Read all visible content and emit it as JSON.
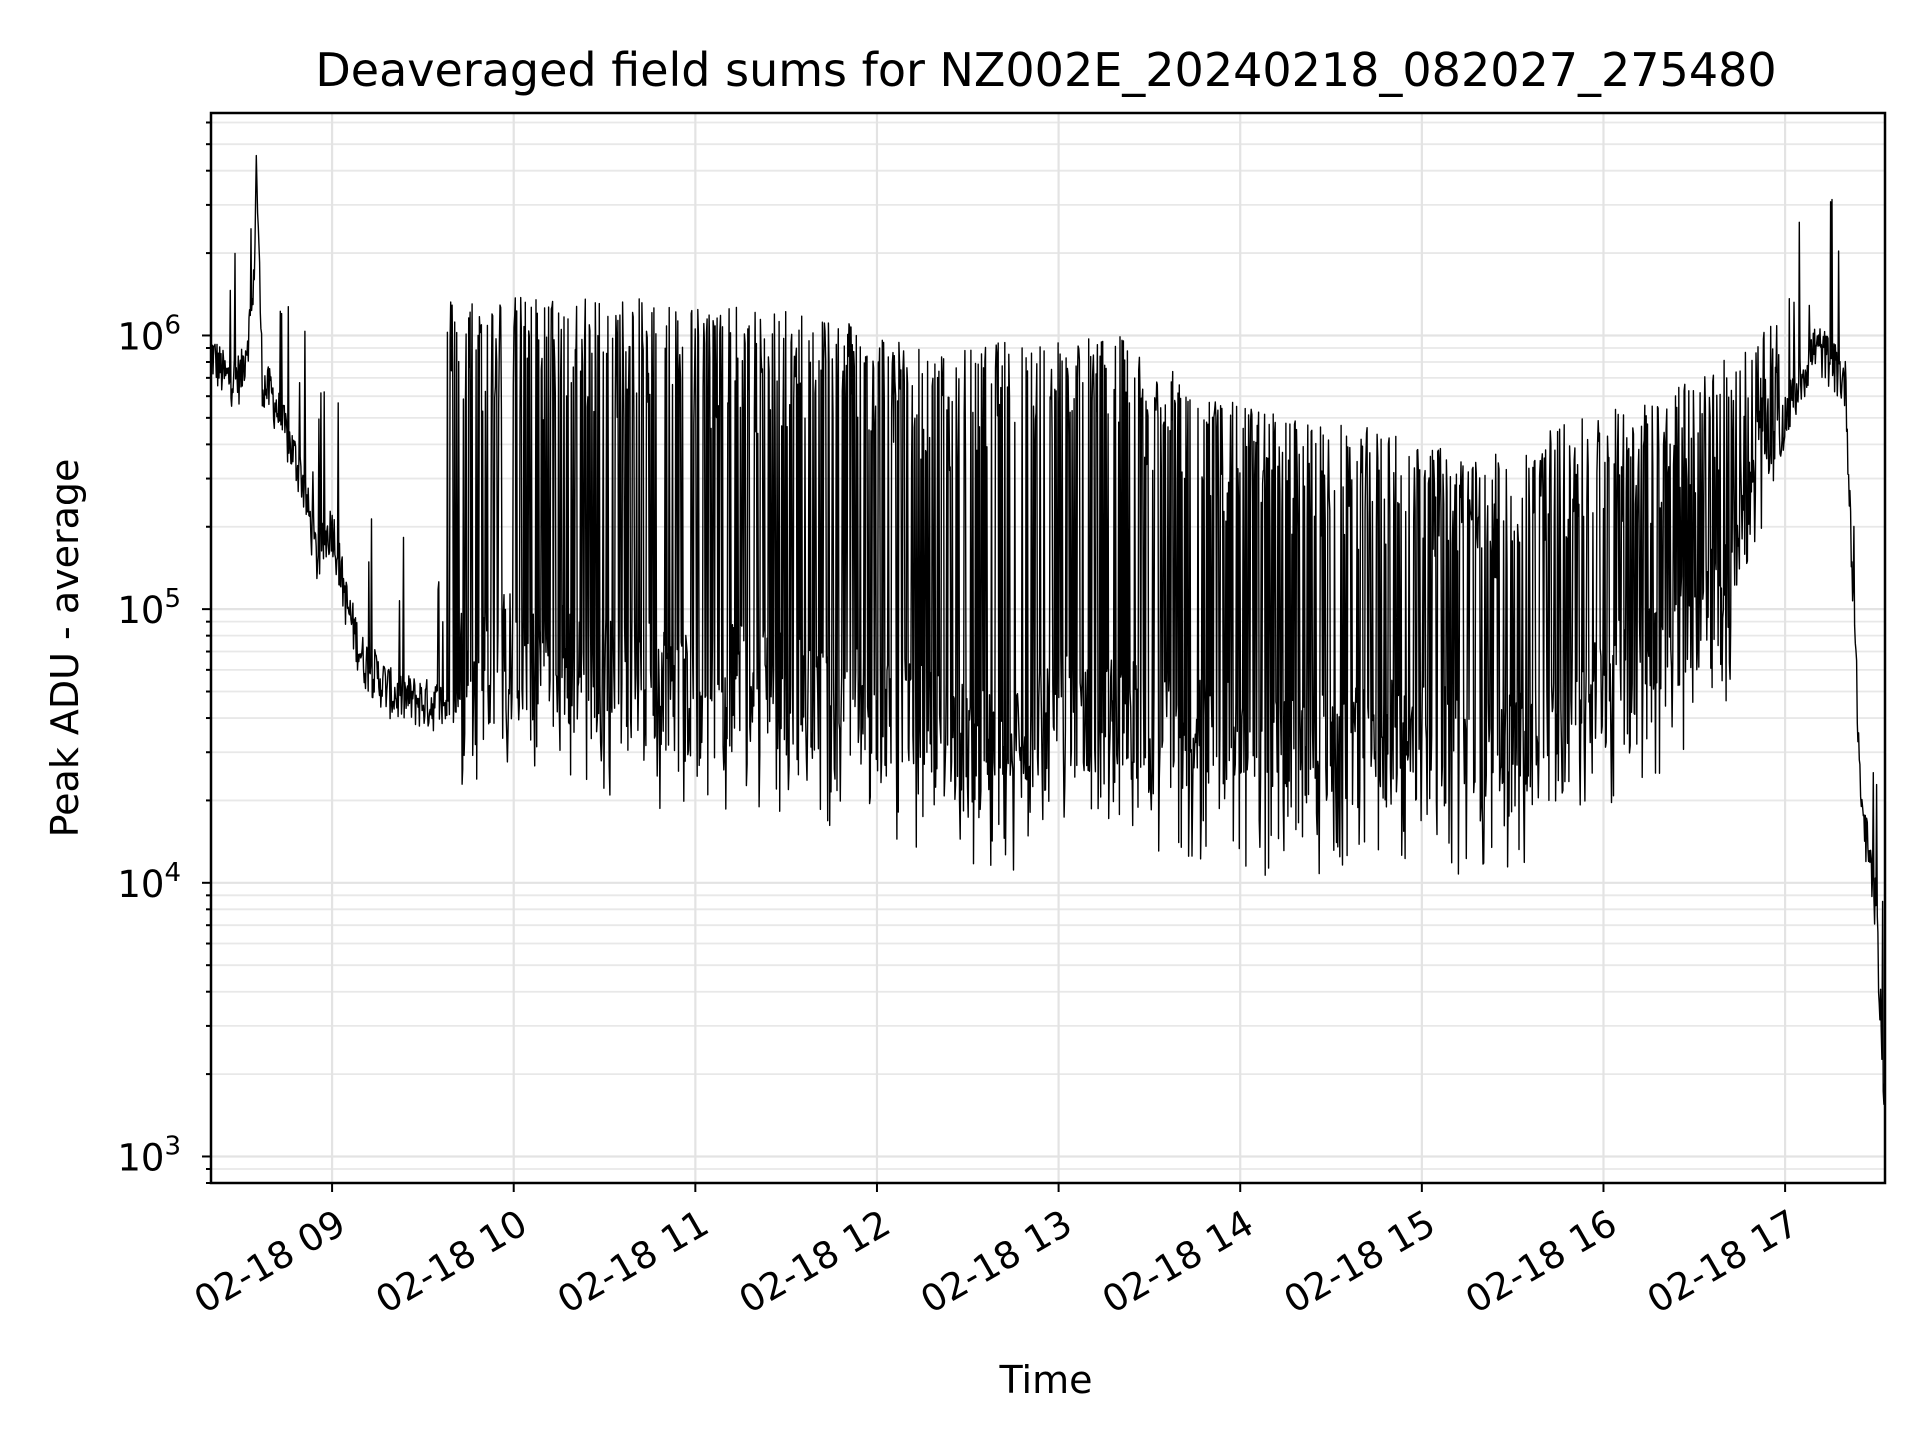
{
  "chart_data": {
    "type": "line",
    "title": "Deaveraged field sums for NZ002E_20240218_082027_275480",
    "xlabel": "Time",
    "ylabel": "Peak ADU - average",
    "yscale": "log",
    "ylim": [
      800,
      6500000
    ],
    "xlim": [
      "2024-02-18 08:20",
      "2024-02-18 17:33"
    ],
    "grid": "on (major and minor)",
    "x_ticks": [
      {
        "x": "2024-02-18 09:00",
        "label": "02-18 09"
      },
      {
        "x": "2024-02-18 10:00",
        "label": "02-18 10"
      },
      {
        "x": "2024-02-18 11:00",
        "label": "02-18 11"
      },
      {
        "x": "2024-02-18 12:00",
        "label": "02-18 12"
      },
      {
        "x": "2024-02-18 13:00",
        "label": "02-18 13"
      },
      {
        "x": "2024-02-18 14:00",
        "label": "02-18 14"
      },
      {
        "x": "2024-02-18 15:00",
        "label": "02-18 15"
      },
      {
        "x": "2024-02-18 16:00",
        "label": "02-18 16"
      },
      {
        "x": "2024-02-18 17:00",
        "label": "02-18 17"
      }
    ],
    "y_ticks": [
      {
        "value": 1000,
        "base": "10",
        "exp": "3"
      },
      {
        "value": 10000,
        "base": "10",
        "exp": "4"
      },
      {
        "value": 100000,
        "base": "10",
        "exp": "5"
      },
      {
        "value": 1000000,
        "base": "10",
        "exp": "6"
      }
    ],
    "series": [
      {
        "color": "#000000",
        "points": [
          [
            "2024-02-18 08:20",
            850000
          ],
          [
            "2024-02-18 08:25",
            680000
          ],
          [
            "2024-02-18 08:30",
            700000
          ],
          [
            "2024-02-18 08:34",
            1300000
          ],
          [
            "2024-02-18 08:35",
            4300000
          ],
          [
            "2024-02-18 08:37",
            650000
          ],
          [
            "2024-02-18 08:40",
            600000
          ],
          [
            "2024-02-18 08:45",
            420000
          ],
          [
            "2024-02-18 08:50",
            300000
          ],
          [
            "2024-02-18 08:55",
            150000
          ],
          [
            "2024-02-18 09:00",
            200000
          ],
          [
            "2024-02-18 09:05",
            100000
          ],
          [
            "2024-02-18 09:10",
            65000
          ],
          [
            "2024-02-18 09:20",
            48000
          ],
          [
            "2024-02-18 09:30",
            45000
          ],
          [
            "2024-02-18 09:40",
            43000
          ],
          [
            "2024-02-18 09:50",
            45000
          ],
          [
            "2024-02-18 10:00",
            50000
          ],
          [
            "2024-02-18 10:15",
            45000
          ],
          [
            "2024-02-18 10:30",
            40000
          ],
          [
            "2024-02-18 10:45",
            38000
          ],
          [
            "2024-02-18 11:00",
            35000
          ],
          [
            "2024-02-18 11:20",
            38000
          ],
          [
            "2024-02-18 11:40",
            32000
          ],
          [
            "2024-02-18 12:00",
            30000
          ],
          [
            "2024-02-18 12:20",
            25000
          ],
          [
            "2024-02-18 12:40",
            20000
          ],
          [
            "2024-02-18 13:00",
            30000
          ],
          [
            "2024-02-18 13:20",
            28000
          ],
          [
            "2024-02-18 13:40",
            25000
          ],
          [
            "2024-02-18 14:00",
            22000
          ],
          [
            "2024-02-18 14:20",
            20000
          ],
          [
            "2024-02-18 14:40",
            22000
          ],
          [
            "2024-02-18 15:00",
            24000
          ],
          [
            "2024-02-18 15:20",
            20000
          ],
          [
            "2024-02-18 15:40",
            22000
          ],
          [
            "2024-02-18 16:00",
            35000
          ],
          [
            "2024-02-18 16:20",
            50000
          ],
          [
            "2024-02-18 16:40",
            80000
          ],
          [
            "2024-02-18 17:00",
            500000
          ],
          [
            "2024-02-18 17:10",
            900000
          ],
          [
            "2024-02-18 17:15",
            800000
          ],
          [
            "2024-02-18 17:20",
            650000
          ],
          [
            "2024-02-18 17:25",
            20000
          ],
          [
            "2024-02-18 17:30",
            8000
          ],
          [
            "2024-02-18 17:33",
            1500
          ]
        ],
        "spike_peaks": [
          [
            "2024-02-18 09:50",
            1400000
          ],
          [
            "2024-02-18 10:20",
            1400000
          ],
          [
            "2024-02-18 10:50",
            1350000
          ],
          [
            "2024-02-18 11:20",
            1250000
          ],
          [
            "2024-02-18 11:50",
            1200000
          ],
          [
            "2024-02-18 12:20",
            850000
          ],
          [
            "2024-02-18 12:50",
            1000000
          ],
          [
            "2024-02-18 13:20",
            1000000
          ],
          [
            "2024-02-18 13:50",
            600000
          ],
          [
            "2024-02-18 14:20",
            500000
          ],
          [
            "2024-02-18 14:50",
            450000
          ],
          [
            "2024-02-18 15:20",
            350000
          ],
          [
            "2024-02-18 15:50",
            500000
          ],
          [
            "2024-02-18 16:20",
            600000
          ],
          [
            "2024-02-18 16:50",
            1000000
          ],
          [
            "2024-02-18 17:18",
            2900000
          ]
        ]
      }
    ]
  }
}
